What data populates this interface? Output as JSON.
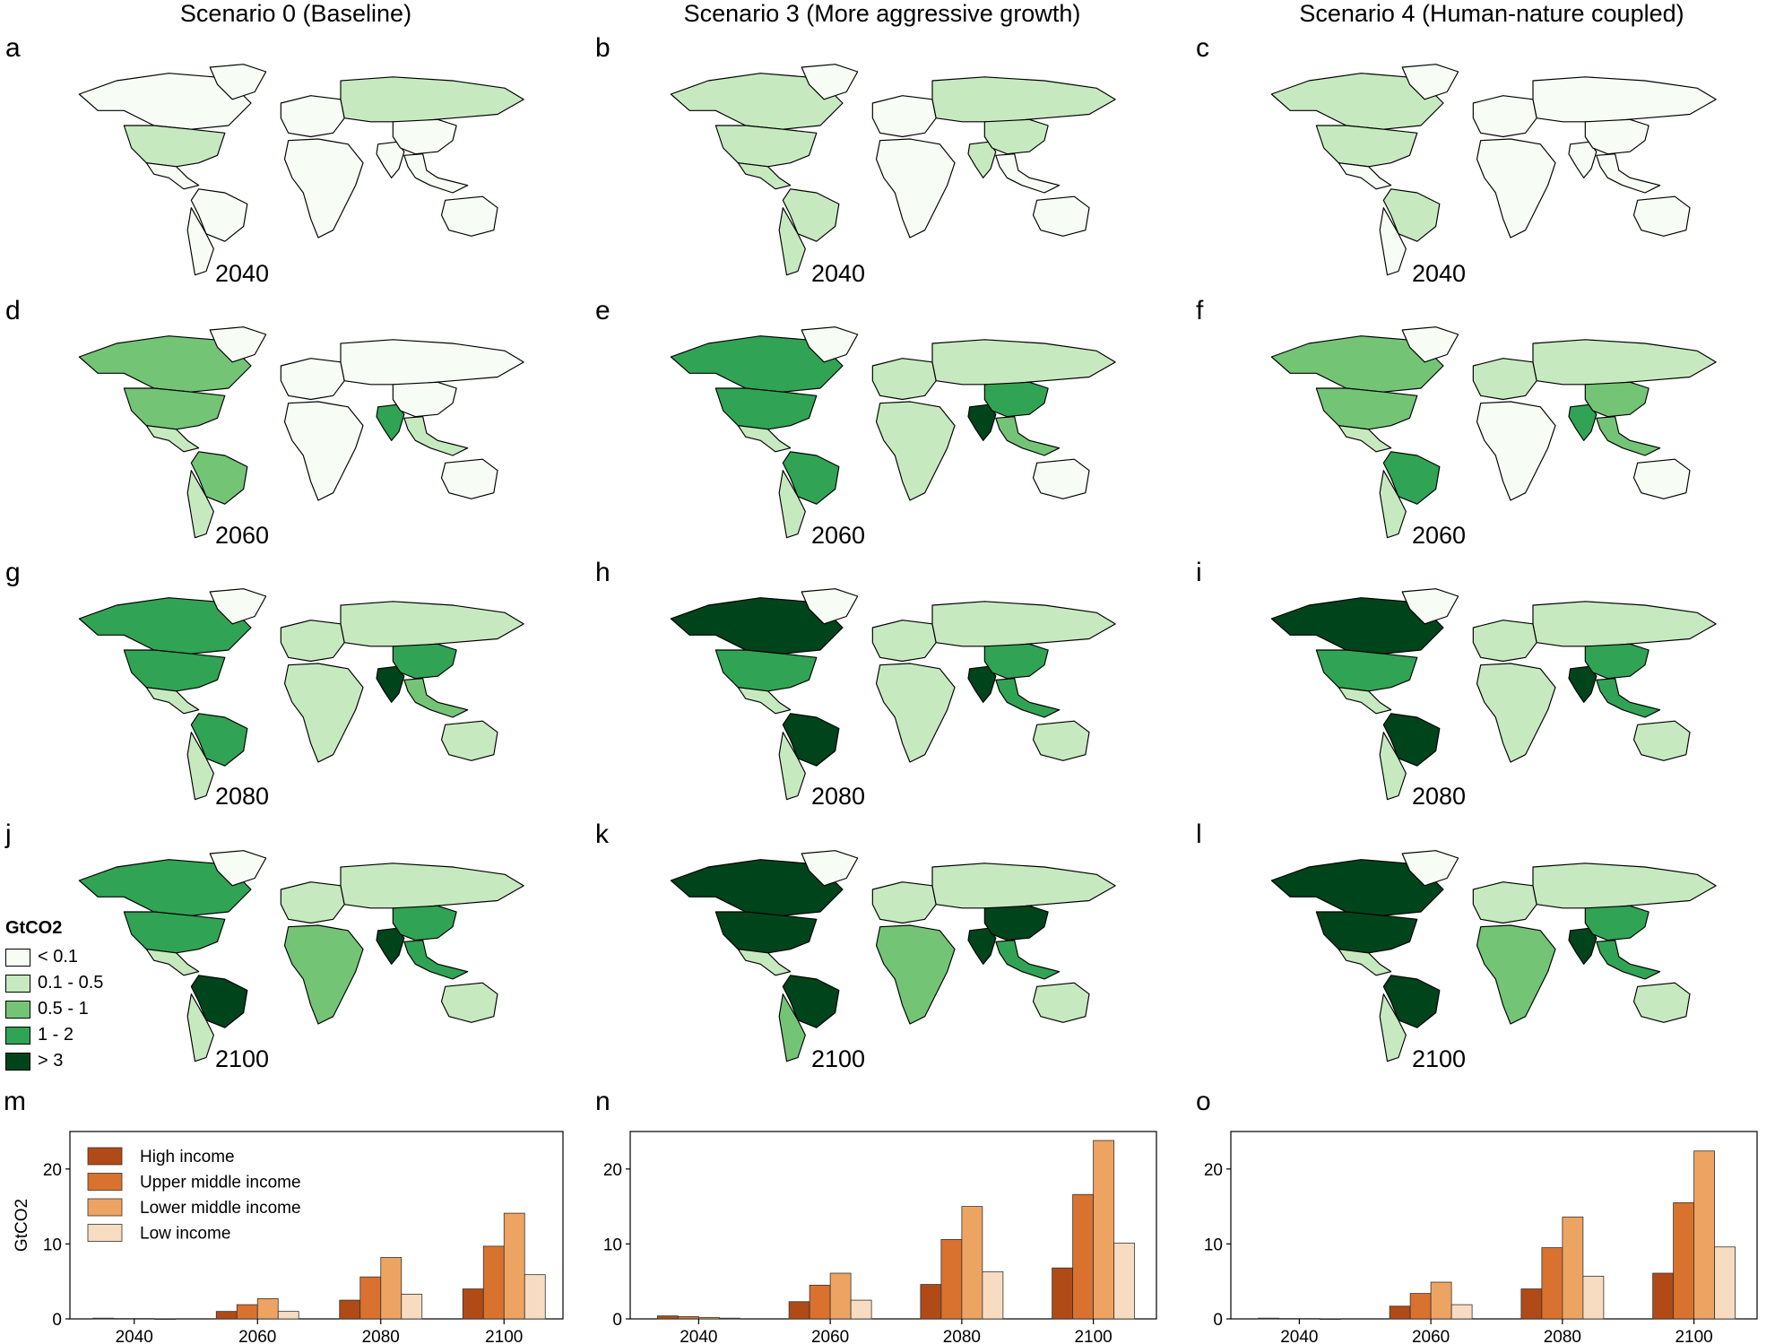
{
  "columns": [
    {
      "title": "Scenario 0 (Baseline)"
    },
    {
      "title": "Scenario 3 (More aggressive growth)"
    },
    {
      "title": "Scenario 4 (Human-nature coupled)"
    }
  ],
  "map_panels": [
    {
      "letter": "a",
      "year": "2040",
      "levels": {
        "na": 0,
        "us": 1,
        "sa": 0,
        "br": 0,
        "arg": 0,
        "eur": 0,
        "rus": 1,
        "ind": 0,
        "chn": 0,
        "sea": 0,
        "afr": 0,
        "aus": 0
      }
    },
    {
      "letter": "b",
      "year": "2040",
      "levels": {
        "na": 1,
        "us": 1,
        "sa": 1,
        "br": 1,
        "arg": 1,
        "eur": 0,
        "rus": 1,
        "ind": 1,
        "chn": 1,
        "sea": 0,
        "afr": 0,
        "aus": 0
      }
    },
    {
      "letter": "c",
      "year": "2040",
      "levels": {
        "na": 1,
        "us": 1,
        "sa": 0,
        "br": 1,
        "arg": 0,
        "eur": 0,
        "rus": 0,
        "ind": 0,
        "chn": 0,
        "sea": 0,
        "afr": 0,
        "aus": 0
      }
    },
    {
      "letter": "d",
      "year": "2060",
      "levels": {
        "na": 2,
        "us": 2,
        "sa": 1,
        "br": 2,
        "arg": 1,
        "eur": 0,
        "rus": 0,
        "ind": 3,
        "chn": 0,
        "sea": 1,
        "afr": 0,
        "aus": 0
      }
    },
    {
      "letter": "e",
      "year": "2060",
      "levels": {
        "na": 3,
        "us": 3,
        "sa": 1,
        "br": 3,
        "arg": 1,
        "eur": 1,
        "rus": 1,
        "ind": 4,
        "chn": 3,
        "sea": 2,
        "afr": 1,
        "aus": 0
      }
    },
    {
      "letter": "f",
      "year": "2060",
      "levels": {
        "na": 2,
        "us": 2,
        "sa": 1,
        "br": 3,
        "arg": 1,
        "eur": 1,
        "rus": 1,
        "ind": 3,
        "chn": 2,
        "sea": 2,
        "afr": 0,
        "aus": 0
      }
    },
    {
      "letter": "g",
      "year": "2080",
      "levels": {
        "na": 3,
        "us": 3,
        "sa": 1,
        "br": 3,
        "arg": 1,
        "eur": 1,
        "rus": 1,
        "ind": 4,
        "chn": 3,
        "sea": 2,
        "afr": 1,
        "aus": 1
      }
    },
    {
      "letter": "h",
      "year": "2080",
      "levels": {
        "na": 4,
        "us": 3,
        "sa": 1,
        "br": 4,
        "arg": 1,
        "eur": 1,
        "rus": 1,
        "ind": 4,
        "chn": 3,
        "sea": 3,
        "afr": 1,
        "aus": 1
      }
    },
    {
      "letter": "i",
      "year": "2080",
      "levels": {
        "na": 4,
        "us": 3,
        "sa": 1,
        "br": 4,
        "arg": 1,
        "eur": 1,
        "rus": 1,
        "ind": 4,
        "chn": 3,
        "sea": 3,
        "afr": 1,
        "aus": 1
      }
    },
    {
      "letter": "j",
      "year": "2100",
      "levels": {
        "na": 3,
        "us": 3,
        "sa": 1,
        "br": 4,
        "arg": 1,
        "eur": 1,
        "rus": 1,
        "ind": 4,
        "chn": 3,
        "sea": 3,
        "afr": 2,
        "aus": 1
      }
    },
    {
      "letter": "k",
      "year": "2100",
      "levels": {
        "na": 4,
        "us": 4,
        "sa": 1,
        "br": 4,
        "arg": 2,
        "eur": 1,
        "rus": 1,
        "ind": 4,
        "chn": 4,
        "sea": 3,
        "afr": 2,
        "aus": 1
      }
    },
    {
      "letter": "l",
      "year": "2100",
      "levels": {
        "na": 4,
        "us": 4,
        "sa": 1,
        "br": 4,
        "arg": 1,
        "eur": 1,
        "rus": 1,
        "ind": 4,
        "chn": 3,
        "sea": 3,
        "afr": 2,
        "aus": 1
      }
    }
  ],
  "legend": {
    "title": "GtCO2",
    "items": [
      {
        "label": "< 0.1",
        "color": "#f7fcf5"
      },
      {
        "label": "0.1 - 0.5",
        "color": "#c7e9c0"
      },
      {
        "label": "0.5 - 1",
        "color": "#74c476"
      },
      {
        "label": "1 - 2",
        "color": "#31a354"
      },
      {
        "label": "> 3",
        "color": "#00441b"
      }
    ]
  },
  "chart_data": [
    {
      "panel": "m",
      "type": "bar",
      "categories": [
        "2040",
        "2060",
        "2080",
        "2100"
      ],
      "ylabel": "GtCO2",
      "ylim": [
        0,
        25
      ],
      "yticks": [
        0,
        10,
        20
      ],
      "legend_placement": "top-left",
      "series": [
        {
          "name": "High income",
          "color": "#b04a16",
          "values": [
            0.1,
            1.0,
            2.5,
            4.0
          ]
        },
        {
          "name": "Upper middle income",
          "color": "#d9722f",
          "values": [
            0.05,
            1.9,
            5.6,
            9.7
          ]
        },
        {
          "name": "Lower middle income",
          "color": "#eda462",
          "values": [
            0.05,
            2.7,
            8.2,
            14.1
          ]
        },
        {
          "name": "Low income",
          "color": "#f7dcc1",
          "values": [
            0.0,
            1.0,
            3.3,
            5.9
          ]
        }
      ]
    },
    {
      "panel": "n",
      "type": "bar",
      "categories": [
        "2040",
        "2060",
        "2080",
        "2100"
      ],
      "ylim": [
        0,
        25
      ],
      "yticks": [
        0,
        10,
        20
      ],
      "series": [
        {
          "name": "High income",
          "color": "#b04a16",
          "values": [
            0.4,
            2.3,
            4.6,
            6.8
          ]
        },
        {
          "name": "Upper middle income",
          "color": "#d9722f",
          "values": [
            0.3,
            4.5,
            10.6,
            16.6
          ]
        },
        {
          "name": "Lower middle income",
          "color": "#eda462",
          "values": [
            0.2,
            6.1,
            15.0,
            23.8
          ]
        },
        {
          "name": "Low income",
          "color": "#f7dcc1",
          "values": [
            0.1,
            2.5,
            6.3,
            10.1
          ]
        }
      ]
    },
    {
      "panel": "o",
      "type": "bar",
      "categories": [
        "2040",
        "2060",
        "2080",
        "2100"
      ],
      "ylim": [
        0,
        25
      ],
      "yticks": [
        0,
        10,
        20
      ],
      "series": [
        {
          "name": "High income",
          "color": "#b04a16",
          "values": [
            0.1,
            1.7,
            4.0,
            6.1
          ]
        },
        {
          "name": "Upper middle income",
          "color": "#d9722f",
          "values": [
            0.05,
            3.4,
            9.5,
            15.5
          ]
        },
        {
          "name": "Lower middle income",
          "color": "#eda462",
          "values": [
            0.05,
            4.9,
            13.6,
            22.4
          ]
        },
        {
          "name": "Low income",
          "color": "#f7dcc1",
          "values": [
            0.0,
            1.9,
            5.7,
            9.6
          ]
        }
      ]
    }
  ]
}
